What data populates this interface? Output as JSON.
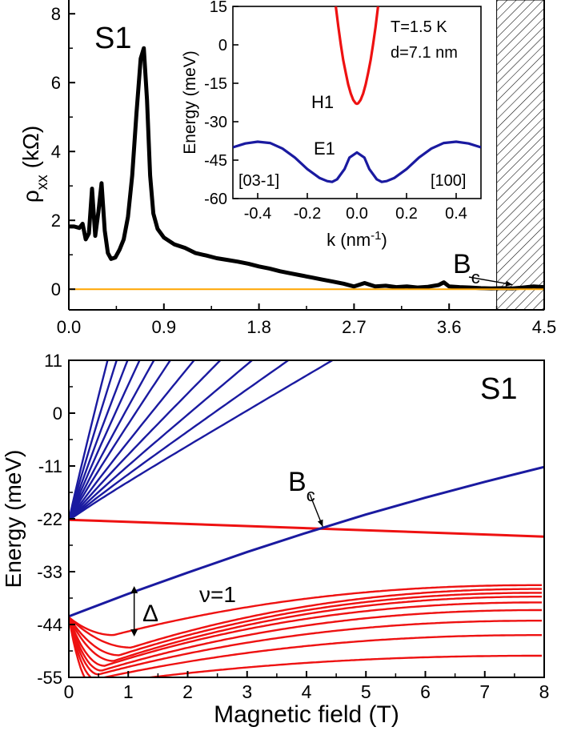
{
  "chart_data": [
    {
      "id": "top",
      "type": "line",
      "panel_label": "S1",
      "xlabel": "",
      "ylabel_base": "ρ",
      "ylabel_sub": "xx",
      "ylabel_unit": " (kΩ)",
      "xlim": [
        0,
        4.5
      ],
      "ylim": [
        -0.6,
        8.4
      ],
      "xticks": [
        "0.0",
        "0.9",
        "1.8",
        "2.7",
        "3.6",
        "4.5"
      ],
      "yticks": [
        "0",
        "2",
        "4",
        "6",
        "8"
      ],
      "hatched_region_x": [
        4.05,
        4.5
      ],
      "annotation": {
        "text_base": "B",
        "text_sub": "c",
        "points_to": [
          4.2,
          0.06
        ]
      },
      "colors": {
        "rho": "#000000",
        "baseline": "#FFA500"
      },
      "series": [
        {
          "key": "rho",
          "x": [
            0.0,
            0.05,
            0.1,
            0.13,
            0.16,
            0.19,
            0.22,
            0.25,
            0.28,
            0.31,
            0.34,
            0.37,
            0.4,
            0.44,
            0.48,
            0.52,
            0.56,
            0.6,
            0.64,
            0.68,
            0.71,
            0.74,
            0.77,
            0.8,
            0.84,
            0.9,
            1.0,
            1.1,
            1.2,
            1.3,
            1.4,
            1.5,
            1.6,
            1.7,
            1.8,
            1.9,
            2.0,
            2.1,
            2.2,
            2.3,
            2.4,
            2.5,
            2.6,
            2.7,
            2.8,
            2.9,
            3.0,
            3.1,
            3.2,
            3.3,
            3.4,
            3.5,
            3.55,
            3.6,
            3.7,
            3.8,
            3.9,
            4.0,
            4.1,
            4.2,
            4.3,
            4.4,
            4.5
          ],
          "y": [
            1.82,
            1.82,
            1.78,
            1.9,
            1.45,
            1.62,
            2.92,
            1.55,
            2.25,
            3.08,
            1.7,
            1.05,
            0.88,
            0.92,
            1.15,
            1.45,
            2.1,
            3.3,
            5.1,
            6.7,
            7.0,
            5.5,
            3.3,
            2.2,
            1.75,
            1.5,
            1.3,
            1.2,
            1.05,
            0.98,
            0.9,
            0.85,
            0.8,
            0.74,
            0.66,
            0.6,
            0.52,
            0.46,
            0.4,
            0.34,
            0.28,
            0.22,
            0.16,
            0.08,
            0.18,
            0.08,
            0.1,
            0.06,
            0.08,
            0.05,
            0.07,
            0.12,
            0.2,
            0.08,
            0.06,
            0.05,
            0.03,
            0.02,
            0.03,
            0.02,
            0.05,
            0.08,
            0.06
          ]
        },
        {
          "key": "baseline",
          "x": [
            0,
            4.5
          ],
          "y": [
            0,
            0
          ]
        }
      ],
      "inset": {
        "xlabel_base": "k (nm",
        "xlabel_sup": "-1",
        "xlabel_end": ")",
        "ylabel": "Energy (meV)",
        "xlim": [
          -0.5,
          0.5
        ],
        "ylim": [
          -60,
          15
        ],
        "xticks": [
          "-0.4",
          "-0.2",
          "0.0",
          "0.2",
          "0.4"
        ],
        "yticks": [
          "15",
          "0",
          "-15",
          "-30",
          "-45",
          "-60"
        ],
        "text": {
          "temp": "T=1.5 K",
          "thickness": "d=7.1 nm",
          "h1": "H1",
          "e1": "E1",
          "dir_left": "[03-1]",
          "dir_right": "[100]"
        },
        "colors": {
          "H1": "#EE1111",
          "E1": "#1A1AA0"
        },
        "series": [
          {
            "key": "H1",
            "x": [
              -0.085,
              -0.075,
              -0.065,
              -0.055,
              -0.045,
              -0.035,
              -0.025,
              -0.015,
              -0.005,
              0.0,
              0.005,
              0.015,
              0.025,
              0.035,
              0.045,
              0.055,
              0.065,
              0.075,
              0.085
            ],
            "y": [
              15,
              7,
              0,
              -6,
              -11,
              -15.5,
              -19,
              -21.5,
              -22.8,
              -23,
              -22.8,
              -21.5,
              -19,
              -15.5,
              -11,
              -6,
              0,
              7,
              15
            ]
          },
          {
            "key": "E1",
            "x": [
              -0.5,
              -0.45,
              -0.4,
              -0.35,
              -0.3,
              -0.25,
              -0.2,
              -0.15,
              -0.12,
              -0.1,
              -0.08,
              -0.05,
              -0.03,
              0.0,
              0.03,
              0.05,
              0.08,
              0.1,
              0.12,
              0.15,
              0.2,
              0.25,
              0.3,
              0.35,
              0.4,
              0.45,
              0.5
            ],
            "y": [
              -40,
              -38.5,
              -37.8,
              -38.3,
              -40.5,
              -44,
              -48.5,
              -52,
              -53.2,
              -53.5,
              -52.5,
              -48.5,
              -44,
              -42,
              -44,
              -48.5,
              -52.5,
              -53.5,
              -53.2,
              -52,
              -48.5,
              -44,
              -40.5,
              -38.3,
              -37.8,
              -38.5,
              -40
            ]
          }
        ]
      }
    },
    {
      "id": "bottom",
      "type": "line",
      "panel_label": "S1",
      "xlabel": "Magnetic field (T)",
      "ylabel": "Energy (meV)",
      "xlim": [
        0,
        8
      ],
      "ylim": [
        -55,
        11
      ],
      "xticks": [
        "0",
        "1",
        "2",
        "3",
        "4",
        "5",
        "6",
        "7",
        "8"
      ],
      "yticks": [
        "11",
        "0",
        "-11",
        "-22",
        "-33",
        "-44",
        "-55"
      ],
      "annotations": {
        "bc_base": "B",
        "bc_sub": "c",
        "bc_point": [
          4.3,
          -24.3
        ],
        "nu": "ν=1",
        "gap": "Δ",
        "gap_x": 1.1,
        "gap_range": [
          -46.5,
          -36
        ]
      },
      "colors": {
        "E": "#1A1AA0",
        "H": "#EE1111"
      },
      "blue_levels": {
        "origin": -22.3,
        "top_level_slope": 4.2,
        "fan_slopes": [
          55,
          45,
          37,
          31,
          26,
          22,
          18,
          15,
          12.5,
          10.5,
          8.8
        ],
        "fan_curvature": 0.18
      },
      "red_level": {
        "x": [
          0,
          8
        ],
        "y": [
          -22.2,
          -25.7
        ]
      },
      "blue_line": {
        "x": [
          0,
          1,
          2,
          3,
          4,
          5,
          6,
          7,
          8
        ],
        "y": [
          -42.3,
          -37.6,
          -33.2,
          -28.9,
          -24.9,
          -21.1,
          -17.6,
          -14.3,
          -11.2
        ]
      },
      "red_fan": {
        "origin": -42.5,
        "levels": [
          {
            "xmin": 0.75,
            "ymin": -46.2,
            "end": -35.8
          },
          {
            "xmin": 1.05,
            "ymin": -48.8,
            "end": -36.6
          },
          {
            "xmin": 0.85,
            "ymin": -50.4,
            "end": -37.4
          },
          {
            "xmin": 0.75,
            "ymin": -51.6,
            "end": -38.2
          },
          {
            "xmin": 0.6,
            "ymin": -52.6,
            "end": -39.4
          },
          {
            "xmin": 0.55,
            "ymin": -53.6,
            "end": -41.0
          },
          {
            "xmin": 0.5,
            "ymin": -54.4,
            "end": -43.2
          },
          {
            "xmin": 0.45,
            "ymin": -55.4,
            "end": -46.2
          },
          {
            "xmin": 0.4,
            "ymin": -56.6,
            "end": -50.5
          }
        ]
      }
    }
  ]
}
